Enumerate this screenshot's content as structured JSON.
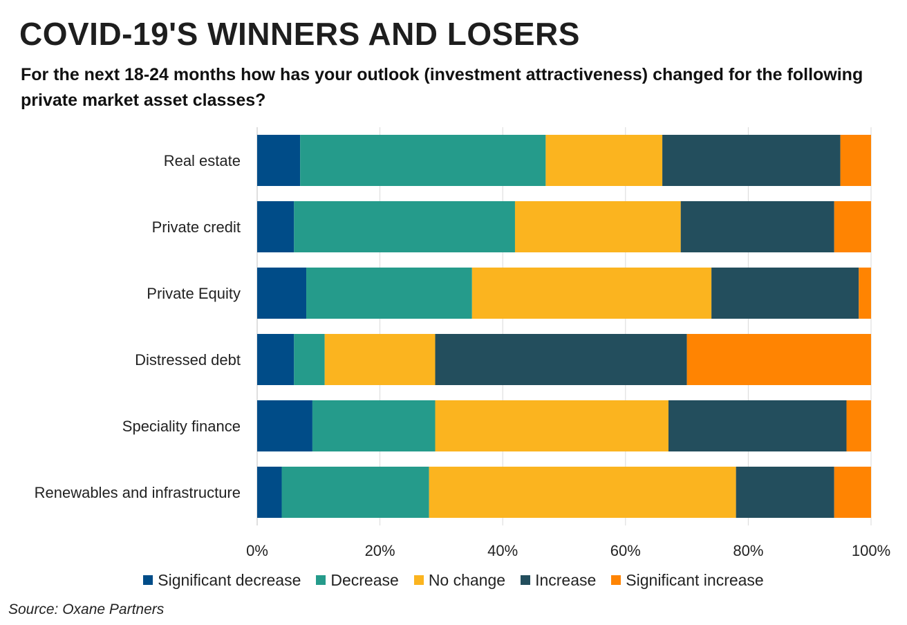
{
  "title": "COVID-19'S WINNERS AND LOSERS",
  "subtitle": "For the next 18-24 months how has your outlook (investment attractiveness) changed for the following private market asset classes?",
  "source": "Source: Oxane Partners",
  "chart_data": {
    "type": "bar",
    "orientation": "horizontal",
    "stacked": "100%",
    "categories": [
      "Real estate",
      "Private credit",
      "Private Equity",
      "Distressed debt",
      "Speciality finance",
      "Renewables and infrastructure"
    ],
    "series": [
      {
        "name": "Significant decrease",
        "color": "#004C88",
        "values": [
          7,
          6,
          8,
          6,
          9,
          4
        ]
      },
      {
        "name": "Decrease",
        "color": "#259B8B",
        "values": [
          40,
          36,
          27,
          5,
          20,
          24
        ]
      },
      {
        "name": "No change",
        "color": "#FBB41F",
        "values": [
          19,
          27,
          39,
          18,
          38,
          50
        ]
      },
      {
        "name": "Increase",
        "color": "#234E5D",
        "values": [
          29,
          25,
          24,
          41,
          29,
          16
        ]
      },
      {
        "name": "Significant increase",
        "color": "#FF8402",
        "values": [
          5,
          6,
          2,
          30,
          4,
          6
        ]
      }
    ],
    "xaxis": {
      "ticks": [
        "0%",
        "20%",
        "40%",
        "60%",
        "80%",
        "100%"
      ],
      "range": [
        0,
        100
      ]
    },
    "grid": true,
    "legend": "bottom"
  }
}
